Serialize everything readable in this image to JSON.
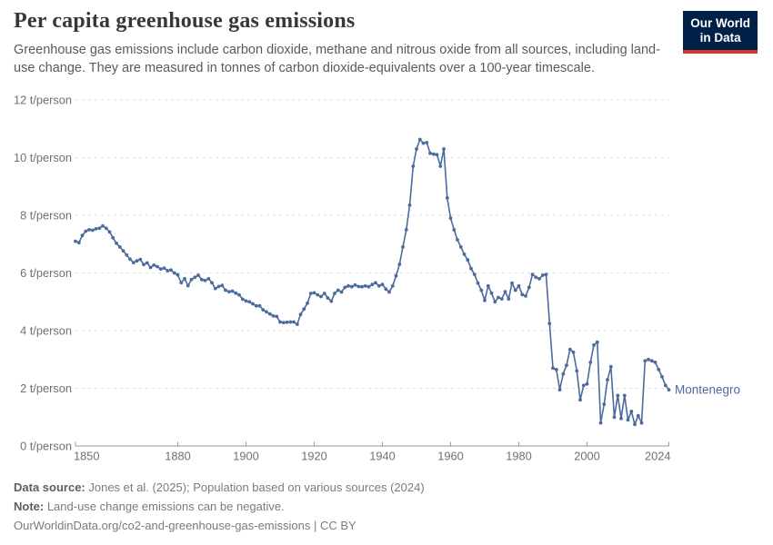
{
  "header": {
    "title": "Per capita greenhouse gas emissions",
    "subtitle": "Greenhouse gas emissions include carbon dioxide, methane and nitrous oxide from all sources, including land-use change. They are measured in tonnes of carbon dioxide-equivalents over a 100-year timescale.",
    "logo": {
      "line1": "Our World",
      "line2": "in Data"
    }
  },
  "chart_data": {
    "type": "line",
    "title": "Per capita greenhouse gas emissions",
    "entity": "Montenegro",
    "unit": "t/person",
    "start_year": 1850,
    "end_year": 2024,
    "values": [
      7.1,
      7.05,
      7.3,
      7.45,
      7.5,
      7.48,
      7.53,
      7.55,
      7.63,
      7.55,
      7.42,
      7.22,
      7.03,
      6.9,
      6.77,
      6.62,
      6.48,
      6.36,
      6.42,
      6.47,
      6.29,
      6.35,
      6.19,
      6.27,
      6.22,
      6.14,
      6.17,
      6.08,
      6.1,
      6.0,
      5.93,
      5.66,
      5.8,
      5.56,
      5.77,
      5.85,
      5.92,
      5.77,
      5.74,
      5.8,
      5.66,
      5.46,
      5.53,
      5.57,
      5.4,
      5.35,
      5.37,
      5.3,
      5.24,
      5.09,
      5.03,
      5.0,
      4.93,
      4.86,
      4.86,
      4.72,
      4.65,
      4.58,
      4.51,
      4.49,
      4.3,
      4.28,
      4.29,
      4.3,
      4.3,
      4.22,
      4.56,
      4.75,
      4.95,
      5.29,
      5.31,
      5.24,
      5.18,
      5.29,
      5.13,
      5.02,
      5.29,
      5.4,
      5.34,
      5.5,
      5.55,
      5.52,
      5.58,
      5.53,
      5.52,
      5.55,
      5.52,
      5.6,
      5.66,
      5.55,
      5.6,
      5.44,
      5.34,
      5.55,
      5.9,
      6.3,
      6.9,
      7.5,
      8.35,
      9.7,
      10.3,
      10.63,
      10.5,
      10.52,
      10.15,
      10.12,
      10.1,
      9.7,
      10.3,
      8.6,
      7.9,
      7.5,
      7.15,
      6.9,
      6.65,
      6.45,
      6.15,
      5.95,
      5.65,
      5.4,
      5.05,
      5.55,
      5.3,
      5.0,
      5.15,
      5.1,
      5.35,
      5.1,
      5.65,
      5.4,
      5.55,
      5.25,
      5.2,
      5.5,
      5.95,
      5.85,
      5.8,
      5.92,
      5.95,
      4.25,
      2.7,
      2.65,
      1.95,
      2.5,
      2.8,
      3.35,
      3.25,
      2.6,
      1.6,
      2.1,
      2.15,
      2.9,
      3.5,
      3.6,
      0.8,
      1.45,
      2.3,
      2.75,
      1.0,
      1.75,
      0.95,
      1.75,
      0.9,
      1.2,
      0.75,
      1.05,
      0.8,
      2.95,
      3.0,
      2.95,
      2.9,
      2.65,
      2.4,
      2.1,
      1.95
    ],
    "ylim": [
      0,
      12
    ],
    "y_ticks": [
      0,
      2,
      4,
      6,
      8,
      10,
      12
    ],
    "y_tick_suffix": " t/person",
    "x_ticks": [
      1850,
      1880,
      1900,
      1920,
      1940,
      1960,
      1980,
      2000,
      2024
    ],
    "grid": true,
    "legend_position": "end-of-line",
    "line_color": "#4C6A9C",
    "end_label": "Montenegro"
  },
  "footer": {
    "source_label": "Data source:",
    "source_text": " Jones et al. (2025); Population based on various sources (2024)",
    "note_label": "Note:",
    "note_text": " Land-use change emissions can be negative.",
    "url_text": "OurWorldinData.org/co2-and-greenhouse-gas-emissions | CC BY"
  }
}
